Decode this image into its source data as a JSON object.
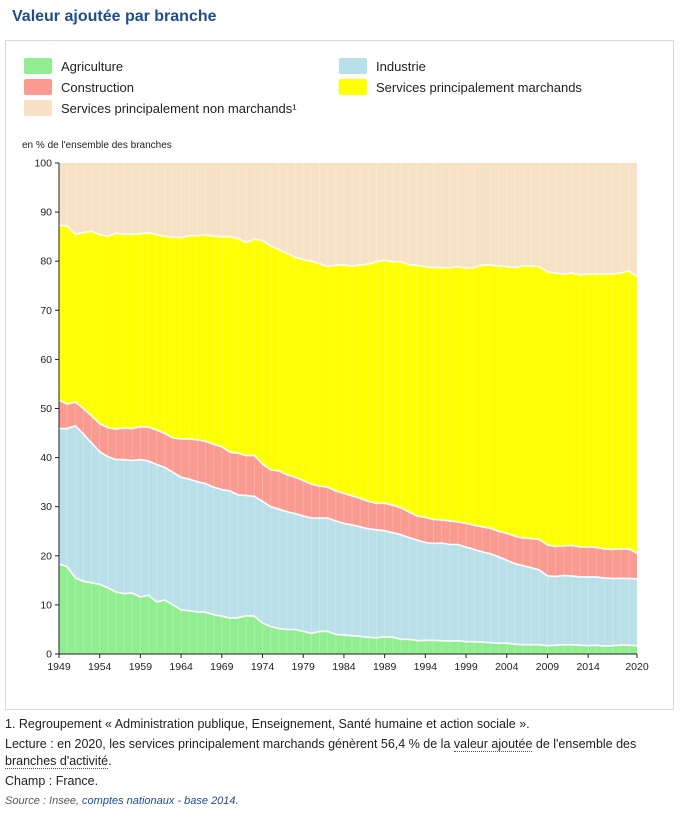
{
  "page": {
    "title": "Valeur ajoutée par branche"
  },
  "colors": {
    "agriculture": "#90ee90",
    "industrie": "#b9dfe9",
    "construction": "#fa9a90",
    "marchands": "#ffff00",
    "non_marchands": "#f7e2c6",
    "axis": "#222222",
    "title": "#1f4e8c"
  },
  "chart_data": {
    "type": "area",
    "stacked": true,
    "unit_label": "en % de l'ensemble des branches",
    "ylim": [
      0,
      100
    ],
    "yticks": [
      0,
      10,
      20,
      30,
      40,
      50,
      60,
      70,
      80,
      90,
      100
    ],
    "xticks": [
      1949,
      1954,
      1959,
      1964,
      1969,
      1974,
      1979,
      1984,
      1989,
      1994,
      1999,
      2004,
      2009,
      2014,
      2020
    ],
    "x": [
      1949,
      1950,
      1951,
      1952,
      1953,
      1954,
      1955,
      1956,
      1957,
      1958,
      1959,
      1960,
      1961,
      1962,
      1963,
      1964,
      1965,
      1966,
      1967,
      1968,
      1969,
      1970,
      1971,
      1972,
      1973,
      1974,
      1975,
      1976,
      1977,
      1978,
      1979,
      1980,
      1981,
      1982,
      1983,
      1984,
      1985,
      1986,
      1987,
      1988,
      1989,
      1990,
      1991,
      1992,
      1993,
      1994,
      1995,
      1996,
      1997,
      1998,
      1999,
      2000,
      2001,
      2002,
      2003,
      2004,
      2005,
      2006,
      2007,
      2008,
      2009,
      2010,
      2011,
      2012,
      2013,
      2014,
      2015,
      2016,
      2017,
      2018,
      2019,
      2020
    ],
    "series": [
      {
        "name": "Agriculture",
        "values": [
          18.3,
          17.8,
          15.5,
          14.8,
          14.5,
          14.2,
          13.5,
          12.6,
          12.3,
          12.4,
          11.6,
          12.0,
          10.6,
          11.0,
          10.0,
          9.0,
          8.8,
          8.6,
          8.5,
          8.0,
          7.7,
          7.3,
          7.4,
          7.8,
          7.7,
          6.3,
          5.6,
          5.2,
          5.0,
          5.0,
          4.6,
          4.2,
          4.6,
          4.6,
          4.0,
          3.9,
          3.7,
          3.6,
          3.4,
          3.3,
          3.5,
          3.4,
          3.0,
          3.0,
          2.7,
          2.8,
          2.8,
          2.7,
          2.6,
          2.7,
          2.5,
          2.5,
          2.4,
          2.3,
          2.2,
          2.2,
          2.0,
          1.9,
          1.9,
          1.9,
          1.7,
          1.8,
          1.9,
          1.9,
          1.8,
          1.7,
          1.8,
          1.6,
          1.7,
          1.8,
          1.8,
          1.7
        ]
      },
      {
        "name": "Industrie",
        "values": [
          27.6,
          28.1,
          31.0,
          30.0,
          28.5,
          27.0,
          26.7,
          27.0,
          27.3,
          27.0,
          28.0,
          27.3,
          28.0,
          27.0,
          27.0,
          27.0,
          26.8,
          26.5,
          26.2,
          26.0,
          25.8,
          25.9,
          25.0,
          24.5,
          24.4,
          24.8,
          24.4,
          24.3,
          24.0,
          23.6,
          23.5,
          23.5,
          23.1,
          23.1,
          23.1,
          22.7,
          22.6,
          22.3,
          22.1,
          22.0,
          21.6,
          21.3,
          21.3,
          20.7,
          20.5,
          19.9,
          19.7,
          19.9,
          19.7,
          19.6,
          19.3,
          18.8,
          18.4,
          18.1,
          17.6,
          16.9,
          16.4,
          16.1,
          15.7,
          15.2,
          14.2,
          14.0,
          14.1,
          14.0,
          13.9,
          14.0,
          13.9,
          13.9,
          13.7,
          13.6,
          13.6,
          13.6
        ]
      },
      {
        "name": "Construction",
        "values": [
          5.8,
          5.0,
          4.8,
          5.2,
          5.5,
          5.7,
          5.9,
          6.2,
          6.4,
          6.5,
          6.7,
          6.9,
          7.0,
          6.9,
          7.0,
          7.8,
          8.2,
          8.5,
          8.6,
          8.7,
          8.7,
          7.9,
          8.5,
          8.1,
          8.3,
          7.6,
          7.5,
          7.8,
          7.5,
          7.4,
          7.2,
          6.9,
          6.5,
          6.3,
          6.1,
          6.1,
          5.9,
          5.8,
          5.6,
          5.4,
          5.6,
          5.6,
          5.5,
          5.2,
          4.9,
          5.1,
          4.9,
          4.7,
          4.8,
          4.6,
          4.8,
          4.9,
          5.1,
          5.2,
          5.2,
          5.5,
          5.6,
          5.6,
          5.9,
          6.2,
          6.3,
          6.1,
          6.0,
          6.2,
          6.1,
          6.1,
          6.0,
          5.9,
          5.9,
          6.0,
          6.0,
          5.2
        ]
      },
      {
        "name": "Services principalement marchands",
        "values": [
          35.6,
          36.3,
          34.2,
          35.8,
          37.6,
          38.5,
          39.0,
          39.9,
          39.5,
          39.6,
          39.3,
          39.6,
          39.8,
          40.2,
          40.9,
          41.0,
          41.4,
          41.6,
          42.1,
          42.4,
          42.8,
          43.9,
          43.7,
          43.4,
          44.1,
          45.5,
          45.6,
          45.1,
          45.1,
          44.8,
          45.0,
          45.4,
          45.3,
          44.9,
          46.0,
          46.5,
          46.8,
          47.5,
          48.3,
          49.2,
          49.5,
          49.6,
          50.1,
          50.4,
          51.0,
          51.1,
          51.3,
          51.4,
          51.5,
          52.0,
          52.0,
          52.5,
          53.3,
          53.6,
          54.0,
          54.3,
          54.7,
          55.4,
          55.5,
          55.6,
          55.6,
          55.7,
          55.4,
          55.5,
          55.4,
          55.6,
          55.7,
          56.0,
          56.1,
          56.2,
          56.6,
          56.4
        ]
      },
      {
        "name": "Services principalement non marchands¹",
        "values": [
          12.7,
          12.8,
          14.5,
          14.2,
          13.9,
          14.6,
          14.9,
          14.3,
          14.5,
          14.5,
          14.4,
          14.2,
          14.6,
          14.9,
          15.1,
          15.2,
          14.8,
          14.8,
          14.6,
          14.9,
          15.0,
          15.0,
          15.4,
          16.2,
          15.5,
          15.8,
          16.9,
          17.6,
          18.4,
          19.2,
          19.7,
          20.0,
          20.5,
          21.1,
          20.8,
          20.8,
          21.0,
          20.8,
          20.6,
          20.1,
          19.8,
          20.1,
          20.1,
          20.7,
          20.9,
          21.1,
          21.3,
          21.3,
          21.4,
          21.1,
          21.4,
          21.3,
          20.8,
          20.8,
          21.0,
          21.1,
          21.3,
          21.0,
          21.0,
          21.1,
          22.2,
          22.4,
          22.6,
          22.4,
          22.8,
          22.6,
          22.6,
          22.6,
          22.6,
          22.4,
          22.0,
          23.1
        ]
      }
    ]
  },
  "legend": {
    "agriculture": "Agriculture",
    "industrie": "Industrie",
    "construction": "Construction",
    "marchands": "Services principalement marchands",
    "non_marchands": "Services principalement non marchands¹"
  },
  "notes": {
    "note1": "1. Regroupement « Administration publique, Enseignement, Santé humaine et action sociale ».",
    "lecture_prefix": "Lecture : en 2020, les services principalement marchands génèrent 56,4 % de la ",
    "lecture_link1": "valeur ajoutée",
    "lecture_mid": " de l'ensemble des ",
    "lecture_link2": "branches d'activité",
    "lecture_suffix": ".",
    "champ": "Champ : France.",
    "source_prefix": "Source : Insee, ",
    "source_link": "comptes nationaux - base 2014",
    "source_suffix": "."
  }
}
